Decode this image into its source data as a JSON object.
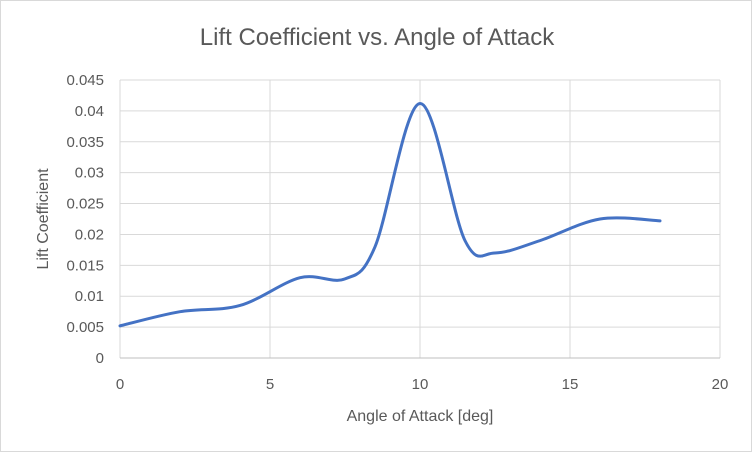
{
  "chart_data": {
    "type": "line",
    "title": "Lift Coefficient vs. Angle of Attack",
    "xlabel": "Angle of Attack [deg]",
    "ylabel": "Lift Coefficient",
    "xlim": [
      0,
      20
    ],
    "ylim": [
      0,
      0.045
    ],
    "x_ticks": [
      "0",
      "5",
      "10",
      "15",
      "20"
    ],
    "y_ticks": [
      "0",
      "0.005",
      "0.01",
      "0.015",
      "0.02",
      "0.025",
      "0.03",
      "0.035",
      "0.04",
      "0.045"
    ],
    "grid": true,
    "legend": "none",
    "series": [
      {
        "name": "Lift Coefficient",
        "color": "#4472c4",
        "x": [
          0,
          2,
          4,
          6,
          7.5,
          8.5,
          10,
          11.5,
          12.5,
          14,
          16,
          18
        ],
        "y": [
          0.0052,
          0.0075,
          0.0085,
          0.013,
          0.0128,
          0.018,
          0.0412,
          0.019,
          0.017,
          0.019,
          0.0225,
          0.0222
        ]
      }
    ]
  }
}
